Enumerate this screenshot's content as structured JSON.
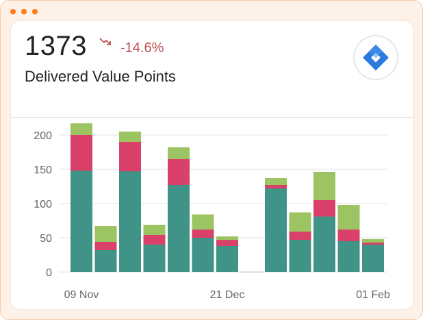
{
  "header": {
    "value": "1373",
    "change": "-14.6%",
    "subtitle": "Delivered Value Points",
    "trend_icon": "trend-down-icon",
    "logo_icon": "jira-logo-icon"
  },
  "colors": {
    "accent": "#ff7a1a",
    "negative": "#c0504d",
    "series_bottom": "#3f9487",
    "series_middle": "#d9416a",
    "series_top": "#9dc462",
    "logo_blue": "#2a7bdd"
  },
  "chart_data": {
    "type": "bar",
    "stacked": true,
    "x_ticks": [
      "09 Nov",
      "21 Dec",
      "01 Feb"
    ],
    "y_ticks": [
      0,
      50,
      100,
      150,
      200
    ],
    "ylim": [
      0,
      225
    ],
    "grid": true,
    "series": [
      {
        "values": [
          148,
          32,
          147,
          40,
          127,
          50,
          38,
          null,
          122,
          47,
          81,
          45,
          40
        ]
      },
      {
        "values": [
          52,
          12,
          43,
          14,
          38,
          12,
          9,
          null,
          5,
          12,
          24,
          17,
          3
        ]
      },
      {
        "values": [
          17,
          23,
          15,
          15,
          17,
          22,
          5,
          null,
          10,
          28,
          41,
          36,
          5
        ]
      }
    ]
  }
}
